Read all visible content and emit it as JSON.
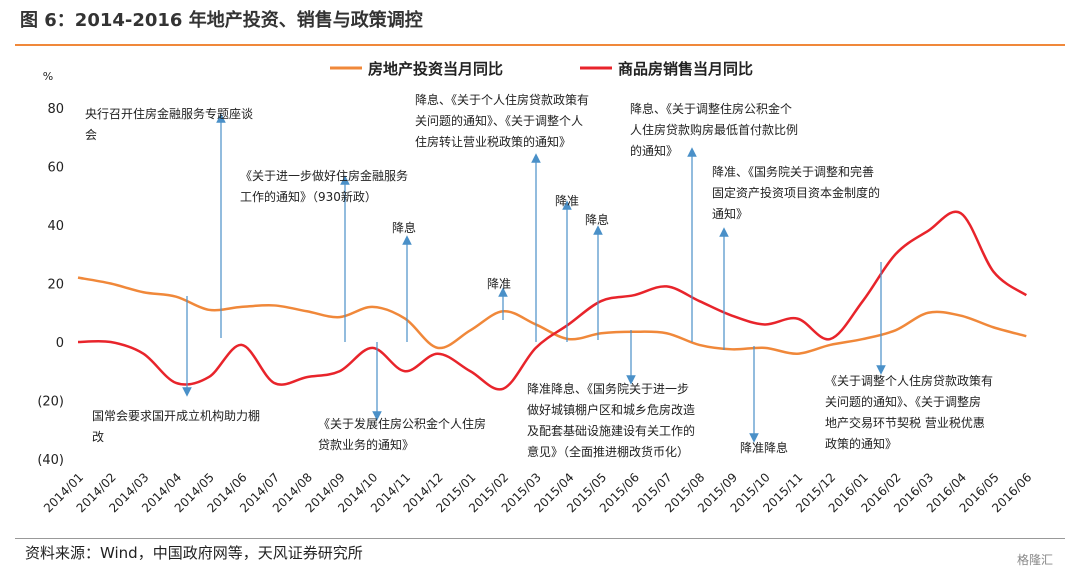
{
  "chart_data": {
    "type": "line",
    "title": "图 6：2014-2016 年地产投资、销售与政策调控",
    "y_unit": "%",
    "source": "资料来源：Wind，中国政府网等，天风证券研究所",
    "watermark": "格隆汇",
    "categories": [
      "2014/01",
      "2014/02",
      "2014/03",
      "2014/04",
      "2014/05",
      "2014/06",
      "2014/07",
      "2014/08",
      "2014/09",
      "2014/10",
      "2014/11",
      "2014/12",
      "2015/01",
      "2015/02",
      "2015/03",
      "2015/04",
      "2015/05",
      "2015/06",
      "2015/07",
      "2015/08",
      "2015/09",
      "2015/10",
      "2015/11",
      "2015/12",
      "2016/01",
      "2016/02",
      "2016/03",
      "2016/04",
      "2016/05",
      "2016/06"
    ],
    "series": [
      {
        "name": "房地产投资当月同比",
        "color": "#f0883a",
        "values": [
          22,
          20,
          17,
          15.5,
          11,
          12,
          12.5,
          10.5,
          8.5,
          12,
          8,
          -2,
          4,
          10.5,
          6,
          1,
          3,
          3.5,
          3,
          -1,
          -2.5,
          -2,
          -4,
          -1,
          1,
          4,
          10,
          9,
          5,
          2
        ]
      },
      {
        "name": "商品房销售当月同比",
        "color": "#e8242b",
        "values": [
          0,
          0,
          -4,
          -14,
          -12,
          -1,
          -14,
          -12,
          -10,
          -2,
          -10,
          -4,
          -10,
          -16,
          -2,
          6,
          14,
          16,
          19,
          14,
          9,
          6,
          8,
          1,
          14,
          30,
          38,
          44,
          24,
          16
        ]
      }
    ],
    "ylim": [
      -40,
      80
    ],
    "yticks": [
      {
        "value": -40,
        "label": "(40)"
      },
      {
        "value": -20,
        "label": "(20)"
      },
      0,
      20,
      40,
      60,
      80
    ],
    "annotations": [
      {
        "lines": [
          "央行召开住房金融服务专题座谈",
          "会"
        ]
      },
      {
        "lines": [
          "《关于进一步做好住房金融服务",
          "工作的通知》（930新政）"
        ]
      },
      {
        "lines": [
          "降息"
        ]
      },
      {
        "lines": [
          "降息、《关于个人住房贷款政策有",
          "关问题的通知》、《关于调整个人",
          "住房转让营业税政策的通知》"
        ]
      },
      {
        "lines": [
          "降准"
        ]
      },
      {
        "lines": [
          "降息"
        ]
      },
      {
        "lines": [
          "降准"
        ]
      },
      {
        "lines": [
          "降息、《关于调整住房公积金个",
          "人住房贷款购房最低首付款比例",
          "的通知》"
        ]
      },
      {
        "lines": [
          "降准、《国务院关于调整和完善",
          "固定资产投资项目资本金制度的",
          "通知》"
        ]
      },
      {
        "lines": [
          "国常会要求国开成立机构助力棚",
          "改"
        ]
      },
      {
        "lines": [
          "《关于发展住房公积金个人住房",
          "贷款业务的通知》"
        ]
      },
      {
        "lines": [
          "降准降息、《国务院关于进一步",
          "做好城镇棚户区和城乡危房改造",
          "及配套基础设施建设有关工作的",
          "意见》（全面推进棚改货币化）"
        ]
      },
      {
        "lines": [
          "降准降息"
        ]
      },
      {
        "lines": [
          "《关于调整个人住房贷款政策有",
          "关问题的通知》、《关于调整房",
          "地产交易环节契税 营业税优惠",
          "政策的通知》"
        ]
      }
    ]
  }
}
